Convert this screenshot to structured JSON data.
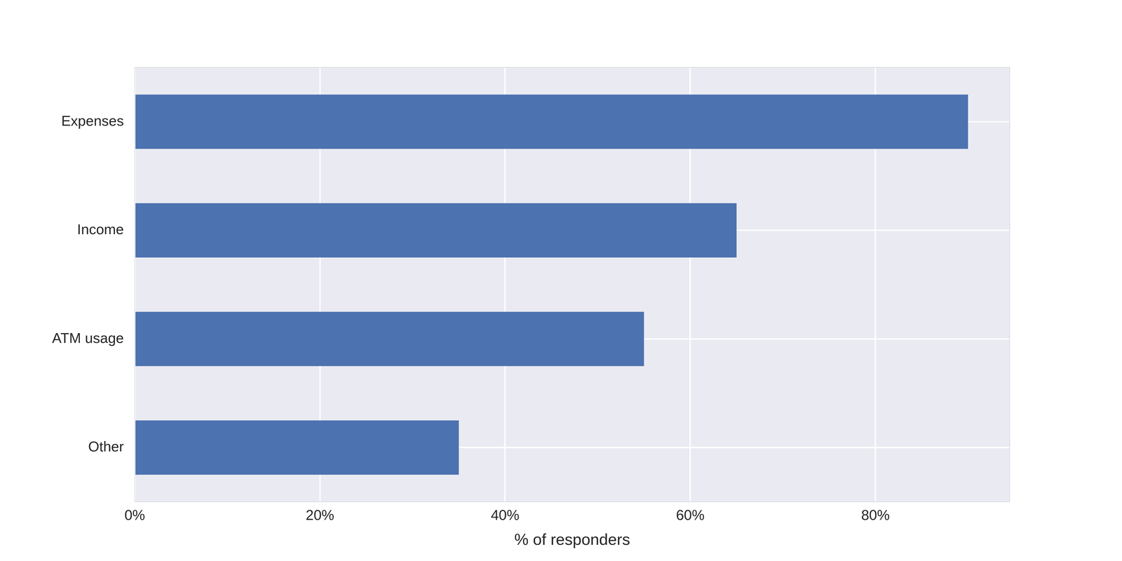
{
  "chart_data": {
    "type": "bar",
    "orientation": "horizontal",
    "categories": [
      "Expenses",
      "Income",
      "ATM usage",
      "Other"
    ],
    "values": [
      90,
      65,
      55,
      35
    ],
    "color": "#4c72b0",
    "x_label": "% of responders",
    "xlim": [
      0,
      94.5
    ],
    "xticks": [
      {
        "value": 0,
        "label": "0%"
      },
      {
        "value": 20,
        "label": "20%"
      },
      {
        "value": 40,
        "label": "40%"
      },
      {
        "value": 60,
        "label": "60%"
      },
      {
        "value": 80,
        "label": "80%"
      }
    ],
    "grid": true
  }
}
